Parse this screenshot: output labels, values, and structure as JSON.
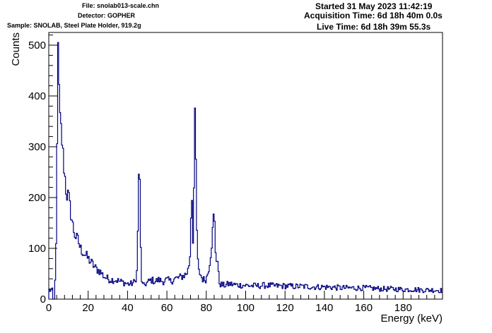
{
  "header": {
    "file": "File: snolab013-scale.chn",
    "detector": "Detector: GOPHER",
    "sample": "Sample: SNOLAB, Steel Plate Holder, 919.2g",
    "started": "Started 31 May 2023 11:42:19",
    "acquisition": "Acquisition Time: 6d 18h 40m 0.0s",
    "live": "Live Time: 6d 18h 39m 55.3s"
  },
  "chart_data": {
    "type": "line",
    "title": "",
    "xlabel": "Energy (keV)",
    "ylabel": "Counts",
    "xlim": [
      0,
      200
    ],
    "ylim": [
      0,
      525
    ],
    "x_ticks": [
      0,
      20,
      40,
      60,
      80,
      100,
      120,
      140,
      160,
      180
    ],
    "y_ticks": [
      0,
      100,
      200,
      300,
      400,
      500
    ],
    "grid": false,
    "style": "step histogram",
    "line_color": "#000080",
    "x": [
      2,
      3,
      4,
      4.5,
      5,
      5.5,
      6,
      6.5,
      7,
      7.5,
      8,
      9,
      10,
      11,
      12,
      13,
      14,
      15,
      16,
      17,
      18,
      19,
      20,
      22,
      24,
      26,
      28,
      30,
      32,
      34,
      36,
      38,
      40,
      42,
      44,
      45,
      45.5,
      46,
      46.5,
      47,
      47.5,
      48,
      49,
      50,
      52,
      54,
      56,
      58,
      60,
      62,
      64,
      66,
      68,
      70,
      71,
      72,
      72.5,
      73,
      73.5,
      74,
      74.5,
      75,
      75.5,
      76,
      77,
      78,
      79,
      80,
      81,
      82,
      83,
      84,
      84.5,
      85,
      85.5,
      86,
      86.5,
      87,
      88,
      89,
      90,
      92,
      95,
      100,
      105,
      110,
      115,
      120,
      125,
      130,
      135,
      140,
      145,
      150,
      155,
      160,
      165,
      170,
      175,
      180,
      185,
      190,
      195,
      200
    ],
    "values": [
      0,
      0,
      140,
      500,
      470,
      355,
      350,
      320,
      300,
      270,
      250,
      205,
      205,
      175,
      150,
      130,
      120,
      115,
      100,
      95,
      90,
      85,
      80,
      70,
      60,
      55,
      45,
      40,
      38,
      38,
      35,
      33,
      30,
      30,
      35,
      60,
      200,
      300,
      150,
      45,
      30,
      25,
      30,
      32,
      38,
      35,
      38,
      35,
      38,
      35,
      40,
      42,
      45,
      50,
      60,
      95,
      240,
      160,
      80,
      355,
      355,
      180,
      90,
      55,
      50,
      40,
      38,
      40,
      55,
      80,
      120,
      175,
      120,
      70,
      90,
      60,
      35,
      30,
      28,
      27,
      28,
      30,
      28,
      27,
      26,
      27,
      26,
      26,
      25,
      25,
      24,
      24,
      23,
      22,
      22,
      22,
      21,
      20,
      20,
      19,
      19,
      18,
      18,
      17
    ]
  }
}
